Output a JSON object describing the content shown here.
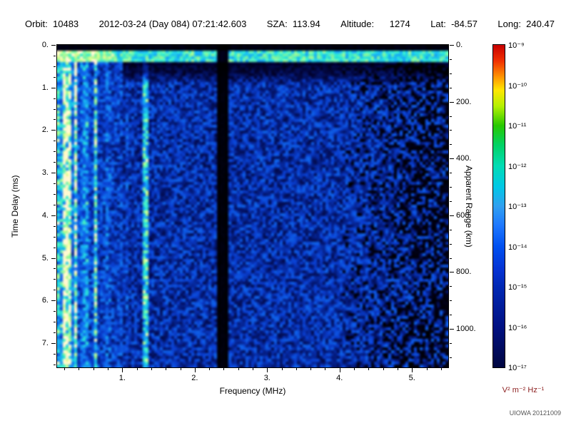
{
  "header": {
    "items": [
      "Orbit:  10483",
      "2012-03-24 (Day 084) 07:21:42.603",
      "SZA:  113.94",
      "Altitude:      1274",
      "Lat:  -84.57",
      "Long:  240.47"
    ]
  },
  "chart_data": {
    "type": "heatmap",
    "description": "Radar sounder ionogram: received spectral density vs frequency and time delay; mostly dark-blue noise speckle with bright green/cyan vertical striations below 1 MHz, a bright horizontal surface-return band near 0.3 ms, a bright cyan vertical line near 1.33 MHz, a black vertical receiver-gap band near 2.35 MHz, and darker patchy signal above 4 MHz.",
    "xlabel": "Frequency (MHz)",
    "x_range": [
      0.1,
      5.5
    ],
    "x_major_ticks": [
      1,
      2,
      3,
      4,
      5
    ],
    "x_major_tick_labels": [
      "1.",
      "2.",
      "3.",
      "4.",
      "5."
    ],
    "x_minor_step": 0.2,
    "ylabel_left": "Time Delay (ms)",
    "y_range": [
      0,
      7.57
    ],
    "y_major_ticks": [
      0,
      1,
      2,
      3,
      4,
      5,
      6,
      7
    ],
    "y_major_tick_labels": [
      "0.",
      "1.",
      "2.",
      "3.",
      "4.",
      "5.",
      "6.",
      "7."
    ],
    "y_minor_step": 0.25,
    "ylabel_right": "Apparent Range (km)",
    "right_ticks_km": [
      0,
      200,
      400,
      600,
      800,
      1000
    ],
    "right_tick_labels": [
      "0.",
      "200.",
      "400.",
      "600.",
      "800.",
      "1000."
    ],
    "right_minor_step_km": 50,
    "km_per_ms": 150,
    "colorbar": {
      "unit": "V² m⁻² Hz⁻¹",
      "tick_labels": [
        "10⁻⁹",
        "10⁻¹⁰",
        "10⁻¹¹",
        "10⁻¹²",
        "10⁻¹³",
        "10⁻¹⁴",
        "10⁻¹⁵",
        "10⁻¹⁶",
        "10⁻¹⁷"
      ],
      "gradient": [
        {
          "pos": 0.0,
          "color": "#c80000"
        },
        {
          "pos": 0.05,
          "color": "#f03000"
        },
        {
          "pos": 0.1,
          "color": "#ff9600"
        },
        {
          "pos": 0.14,
          "color": "#ffe600"
        },
        {
          "pos": 0.19,
          "color": "#b4f000"
        },
        {
          "pos": 0.25,
          "color": "#28c800"
        },
        {
          "pos": 0.31,
          "color": "#00d264"
        },
        {
          "pos": 0.375,
          "color": "#00dcb4"
        },
        {
          "pos": 0.44,
          "color": "#00c8e6"
        },
        {
          "pos": 0.5,
          "color": "#30a0f0"
        },
        {
          "pos": 0.56,
          "color": "#1e78ff"
        },
        {
          "pos": 0.625,
          "color": "#0050f0"
        },
        {
          "pos": 0.7,
          "color": "#0532d2"
        },
        {
          "pos": 0.75,
          "color": "#0028b4"
        },
        {
          "pos": 0.875,
          "color": "#001082"
        },
        {
          "pos": 1.0,
          "color": "#000640"
        }
      ]
    },
    "noise_seed": 20121009,
    "colormap_stops": [
      {
        "v": 0.0,
        "c": "#000000"
      },
      {
        "v": 0.1,
        "c": "#02022e"
      },
      {
        "v": 0.25,
        "c": "#041a7a"
      },
      {
        "v": 0.4,
        "c": "#0a3fd0"
      },
      {
        "v": 0.55,
        "c": "#1272f0"
      },
      {
        "v": 0.68,
        "c": "#19b7f0"
      },
      {
        "v": 0.78,
        "c": "#2fe9d2"
      },
      {
        "v": 0.87,
        "c": "#8cf59a"
      },
      {
        "v": 0.94,
        "c": "#d8fc8a"
      },
      {
        "v": 1.0,
        "c": "#fff7d0"
      }
    ],
    "features": [
      {
        "name": "top-blank-band",
        "t_range_ms": [
          0,
          0.14
        ],
        "level": "black (no data)"
      },
      {
        "name": "surface-return-band",
        "t_range_ms": [
          0.16,
          0.42
        ],
        "level": "bright green/cyan band across all frequencies"
      },
      {
        "name": "plasma-striations",
        "f_range_mhz": [
          0.1,
          1.0
        ],
        "level": "bright vertical streaks, strongest below 0.3 MHz, full height"
      },
      {
        "name": "harmonic-line",
        "f_mhz": 1.33,
        "level": "bright cyan vertical line, full height"
      },
      {
        "name": "receiver-gap",
        "f_range_mhz": [
          2.31,
          2.45
        ],
        "level": "black vertical band, full height"
      },
      {
        "name": "background-speckle",
        "level": "blue noise near 10⁻¹⁶ over most of plot"
      },
      {
        "name": "weak-signal-region",
        "f_range_mhz": [
          4.0,
          5.5
        ],
        "level": "darker, patchy with black blotches"
      }
    ]
  },
  "credit": "UIOWA 20121009"
}
